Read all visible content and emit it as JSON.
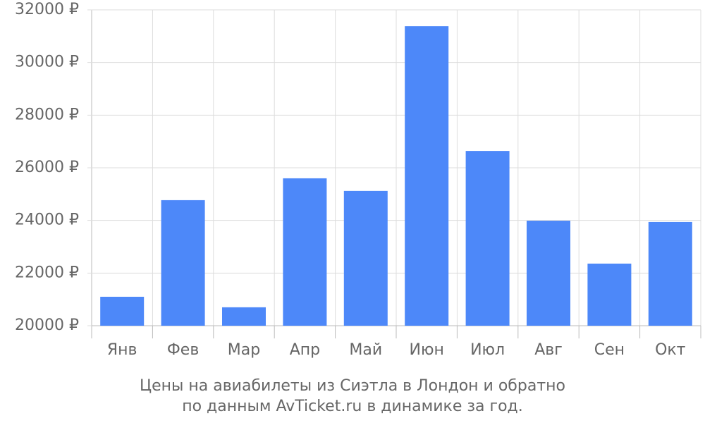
{
  "chart_data": {
    "type": "bar",
    "title": [
      "Цены на авиабилеты из Сиэтла в Лондон и обратно",
      "по данным AvTicket.ru в динамике за год."
    ],
    "categories": [
      "Янв",
      "Фев",
      "Мар",
      "Апр",
      "Май",
      "Июн",
      "Июл",
      "Авг",
      "Сен",
      "Окт"
    ],
    "values": [
      21100,
      24770,
      20700,
      25600,
      25120,
      31380,
      26640,
      23990,
      22360,
      23940
    ],
    "color": "#4d88f9",
    "ylim": [
      20000,
      32000
    ],
    "yticks": [
      {
        "value": 20000,
        "label": "20000 ₽"
      },
      {
        "value": 22000,
        "label": "22000 ₽"
      },
      {
        "value": 24000,
        "label": "24000 ₽"
      },
      {
        "value": 26000,
        "label": "26000 ₽"
      },
      {
        "value": 28000,
        "label": "28000 ₽"
      },
      {
        "value": 30000,
        "label": "30000 ₽"
      },
      {
        "value": 32000,
        "label": "32000 ₽"
      }
    ],
    "grid": true
  }
}
